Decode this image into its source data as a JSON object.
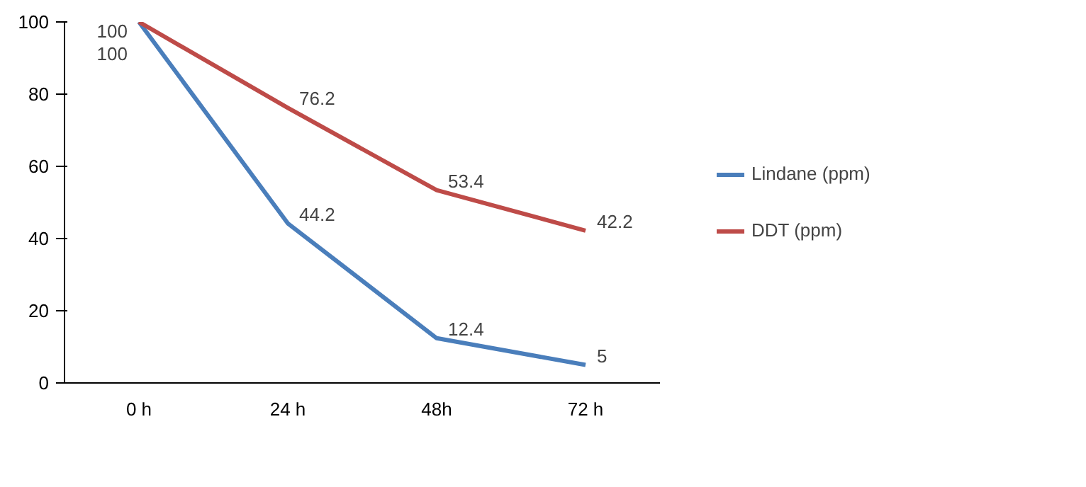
{
  "chart_data": {
    "type": "line",
    "categories": [
      "0 h",
      "24 h",
      "48h",
      "72 h"
    ],
    "series": [
      {
        "name": "Lindane (ppm)",
        "color": "#4a7ebb",
        "values": [
          100,
          44.2,
          12.4,
          5
        ]
      },
      {
        "name": "DDT (ppm)",
        "color": "#be4b48",
        "values": [
          100,
          76.2,
          53.4,
          42.2
        ]
      }
    ],
    "ylim": [
      0,
      100
    ],
    "yticks": [
      0,
      20,
      40,
      60,
      80,
      100
    ],
    "data_labels": true,
    "legend": "right",
    "grid": false,
    "marker": "none",
    "line_style": "solid"
  }
}
